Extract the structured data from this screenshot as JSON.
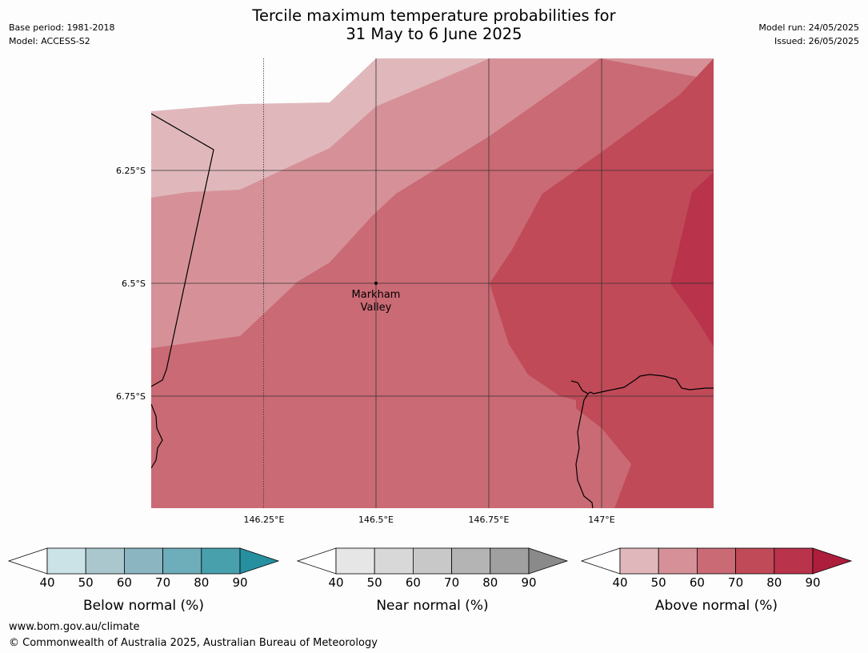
{
  "header": {
    "title_line1": "Tercile maximum temperature probabilities for",
    "title_line2": "31 May to 6 June 2025",
    "base_period": "Base period: 1981-2018",
    "model": "Model: ACCESS-S2",
    "model_run": "Model run: 24/05/2025",
    "issued": "Issued: 26/05/2025"
  },
  "map": {
    "lat_labels": [
      "6.25°S",
      "6.5°S",
      "6.75°S"
    ],
    "lon_labels": [
      "146.25°E",
      "146.5°E",
      "146.75°E",
      "147°E"
    ],
    "place": {
      "name_line1": "Markham",
      "name_line2": "Valley"
    },
    "colors": {
      "above_40": "#e0b8bc",
      "above_50": "#d69198",
      "above_60": "#ca6a74",
      "above_70": "#c04a57",
      "above_80": "#b9334a"
    }
  },
  "legends": [
    {
      "label": "Below normal (%)",
      "ticks": [
        "40",
        "50",
        "60",
        "70",
        "80",
        "90"
      ],
      "colors": [
        "#cbe2e7",
        "#a9c7cd",
        "#8ab5c1",
        "#6eadba",
        "#48a0ad",
        "#2690a0"
      ]
    },
    {
      "label": "Near normal (%)",
      "ticks": [
        "40",
        "50",
        "60",
        "70",
        "80",
        "90"
      ],
      "colors": [
        "#e6e6e6",
        "#d8d8d8",
        "#c8c8c8",
        "#b4b4b4",
        "#a0a0a0",
        "#8a8a8a"
      ]
    },
    {
      "label": "Above normal (%)",
      "ticks": [
        "40",
        "50",
        "60",
        "70",
        "80",
        "90"
      ],
      "colors": [
        "#e0b8bc",
        "#d69198",
        "#ca6a74",
        "#c04a57",
        "#b9334a",
        "#ad1e3c"
      ]
    }
  ],
  "footer": {
    "url": "www.bom.gov.au/climate",
    "copyright": "© Commonwealth of Australia 2025, Australian Bureau of Meteorology"
  }
}
